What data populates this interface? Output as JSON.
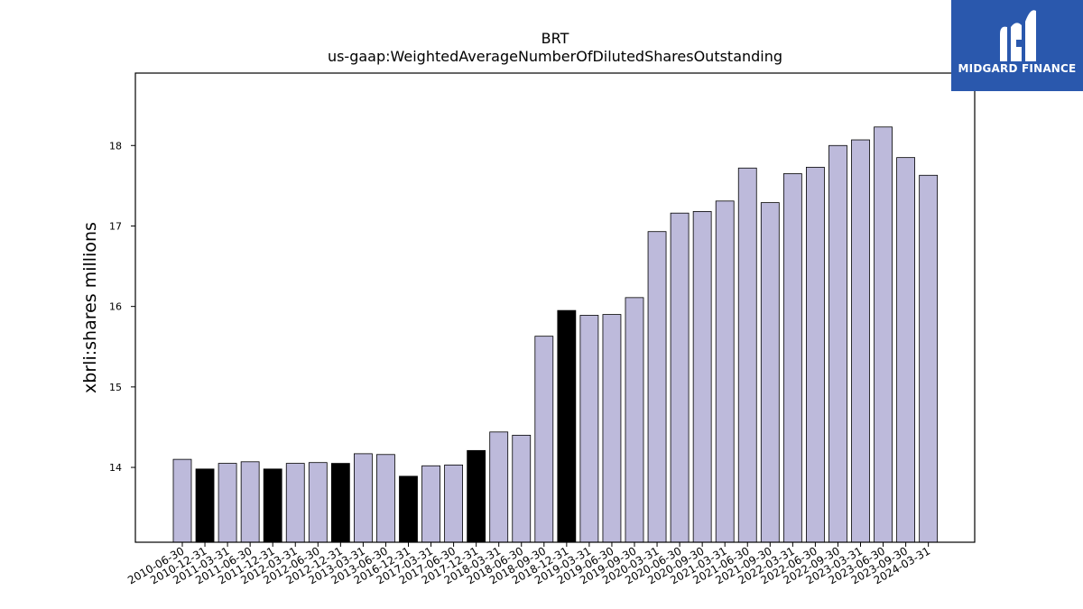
{
  "title": "BRT",
  "subtitle": "us-gaap:WeightedAverageNumberOfDilutedSharesOutstanding",
  "logo_text": "MIDGARD FINANCE",
  "colors": {
    "bar_default": "#bdbadb",
    "bar_highlight": "#000000",
    "axis": "#000000"
  },
  "chart_data": {
    "type": "bar",
    "title": "BRT",
    "subtitle": "us-gaap:WeightedAverageNumberOfDilutedSharesOutstanding",
    "ylabel": "xbrli:shares millions",
    "ylim": [
      13.07,
      18.9
    ],
    "yticks": [
      14,
      15,
      16,
      17,
      18
    ],
    "grid": false,
    "categories": [
      "2010-06-30",
      "2010-12-31",
      "2011-03-31",
      "2011-06-30",
      "2011-12-31",
      "2012-03-31",
      "2012-06-30",
      "2012-12-31",
      "2013-03-31",
      "2013-06-30",
      "2016-12-31",
      "2017-03-31",
      "2017-06-30",
      "2017-12-31",
      "2018-03-31",
      "2018-06-30",
      "2018-09-30",
      "2018-12-31",
      "2019-03-31",
      "2019-06-30",
      "2019-09-30",
      "2020-03-31",
      "2020-06-30",
      "2020-09-30",
      "2021-03-31",
      "2021-06-30",
      "2021-09-30",
      "2022-03-31",
      "2022-06-30",
      "2022-09-30",
      "2023-03-31",
      "2023-06-30",
      "2023-09-30",
      "2024-03-31"
    ],
    "values": [
      14.1,
      13.98,
      14.05,
      14.07,
      13.98,
      14.05,
      14.06,
      14.05,
      14.17,
      14.16,
      13.89,
      14.02,
      14.03,
      14.21,
      14.44,
      14.4,
      15.63,
      15.95,
      15.89,
      15.9,
      16.11,
      16.93,
      17.16,
      17.18,
      17.31,
      17.72,
      17.29,
      17.65,
      17.73,
      18.0,
      18.07,
      18.23,
      17.85,
      17.63
    ],
    "highlight": [
      false,
      true,
      false,
      false,
      true,
      false,
      false,
      true,
      false,
      false,
      true,
      false,
      false,
      true,
      false,
      false,
      false,
      true,
      false,
      false,
      false,
      false,
      false,
      false,
      false,
      false,
      false,
      false,
      false,
      false,
      false,
      false,
      false,
      false
    ]
  }
}
